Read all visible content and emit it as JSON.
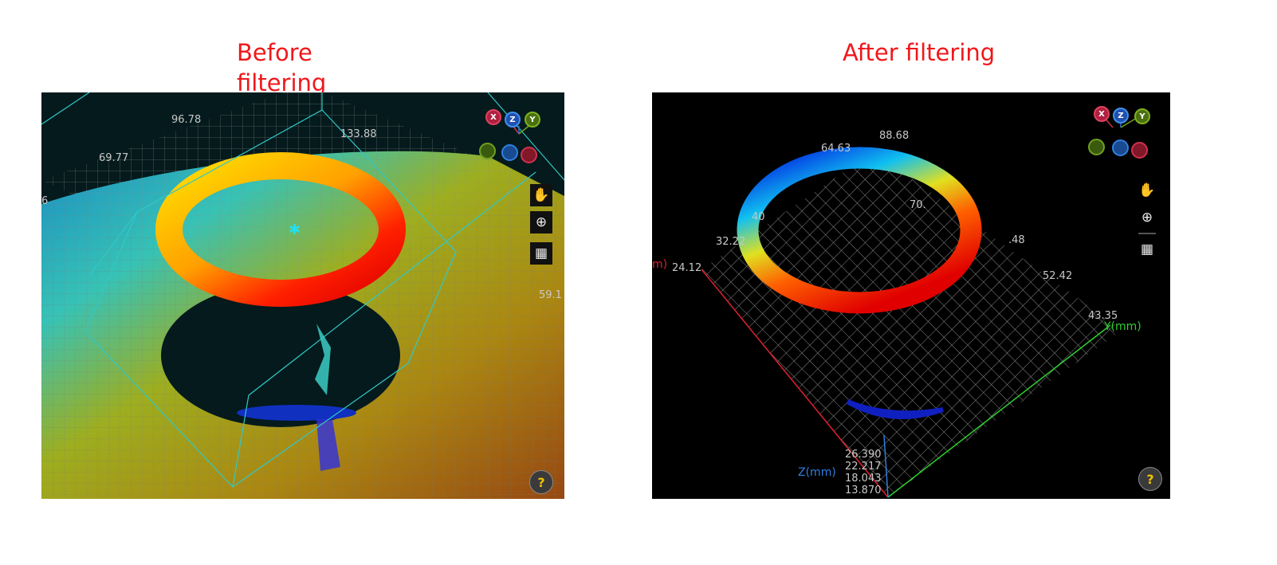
{
  "before": {
    "title_line1": "Before",
    "title_line2": "filtering",
    "labels": {
      "a": "96.78",
      "b": "133.88",
      "c": "69.77",
      "d": "6",
      "e": "59.1"
    },
    "axis_buttons": [
      "X",
      "Z",
      "Y"
    ],
    "tools": [
      "pan-icon",
      "zoom-icon",
      "grid-icon"
    ],
    "help": "?"
  },
  "after": {
    "title": "After filtering",
    "labels": {
      "a": "88.68",
      "b": "64.63",
      "c": "40",
      "d": "70.",
      "e": "32.22",
      "f": ".48",
      "g": "24.12",
      "h": "52.42",
      "i": "43.35",
      "x_axis_frag": "m)",
      "y_axis": "Y(mm)",
      "z_axis": "Z(mm)",
      "z1": "26.390",
      "z2": "22.217",
      "z3": "18.043",
      "z4": "13.870"
    },
    "axis_buttons": [
      "X",
      "Z",
      "Y"
    ],
    "tools": [
      "pan-icon",
      "zoom-icon",
      "grid-icon"
    ],
    "help": "?"
  },
  "colors": {
    "title": "#f0171b",
    "x_axis": "#e02030",
    "y_axis": "#2fd02f",
    "z_axis": "#2f7fe0"
  }
}
